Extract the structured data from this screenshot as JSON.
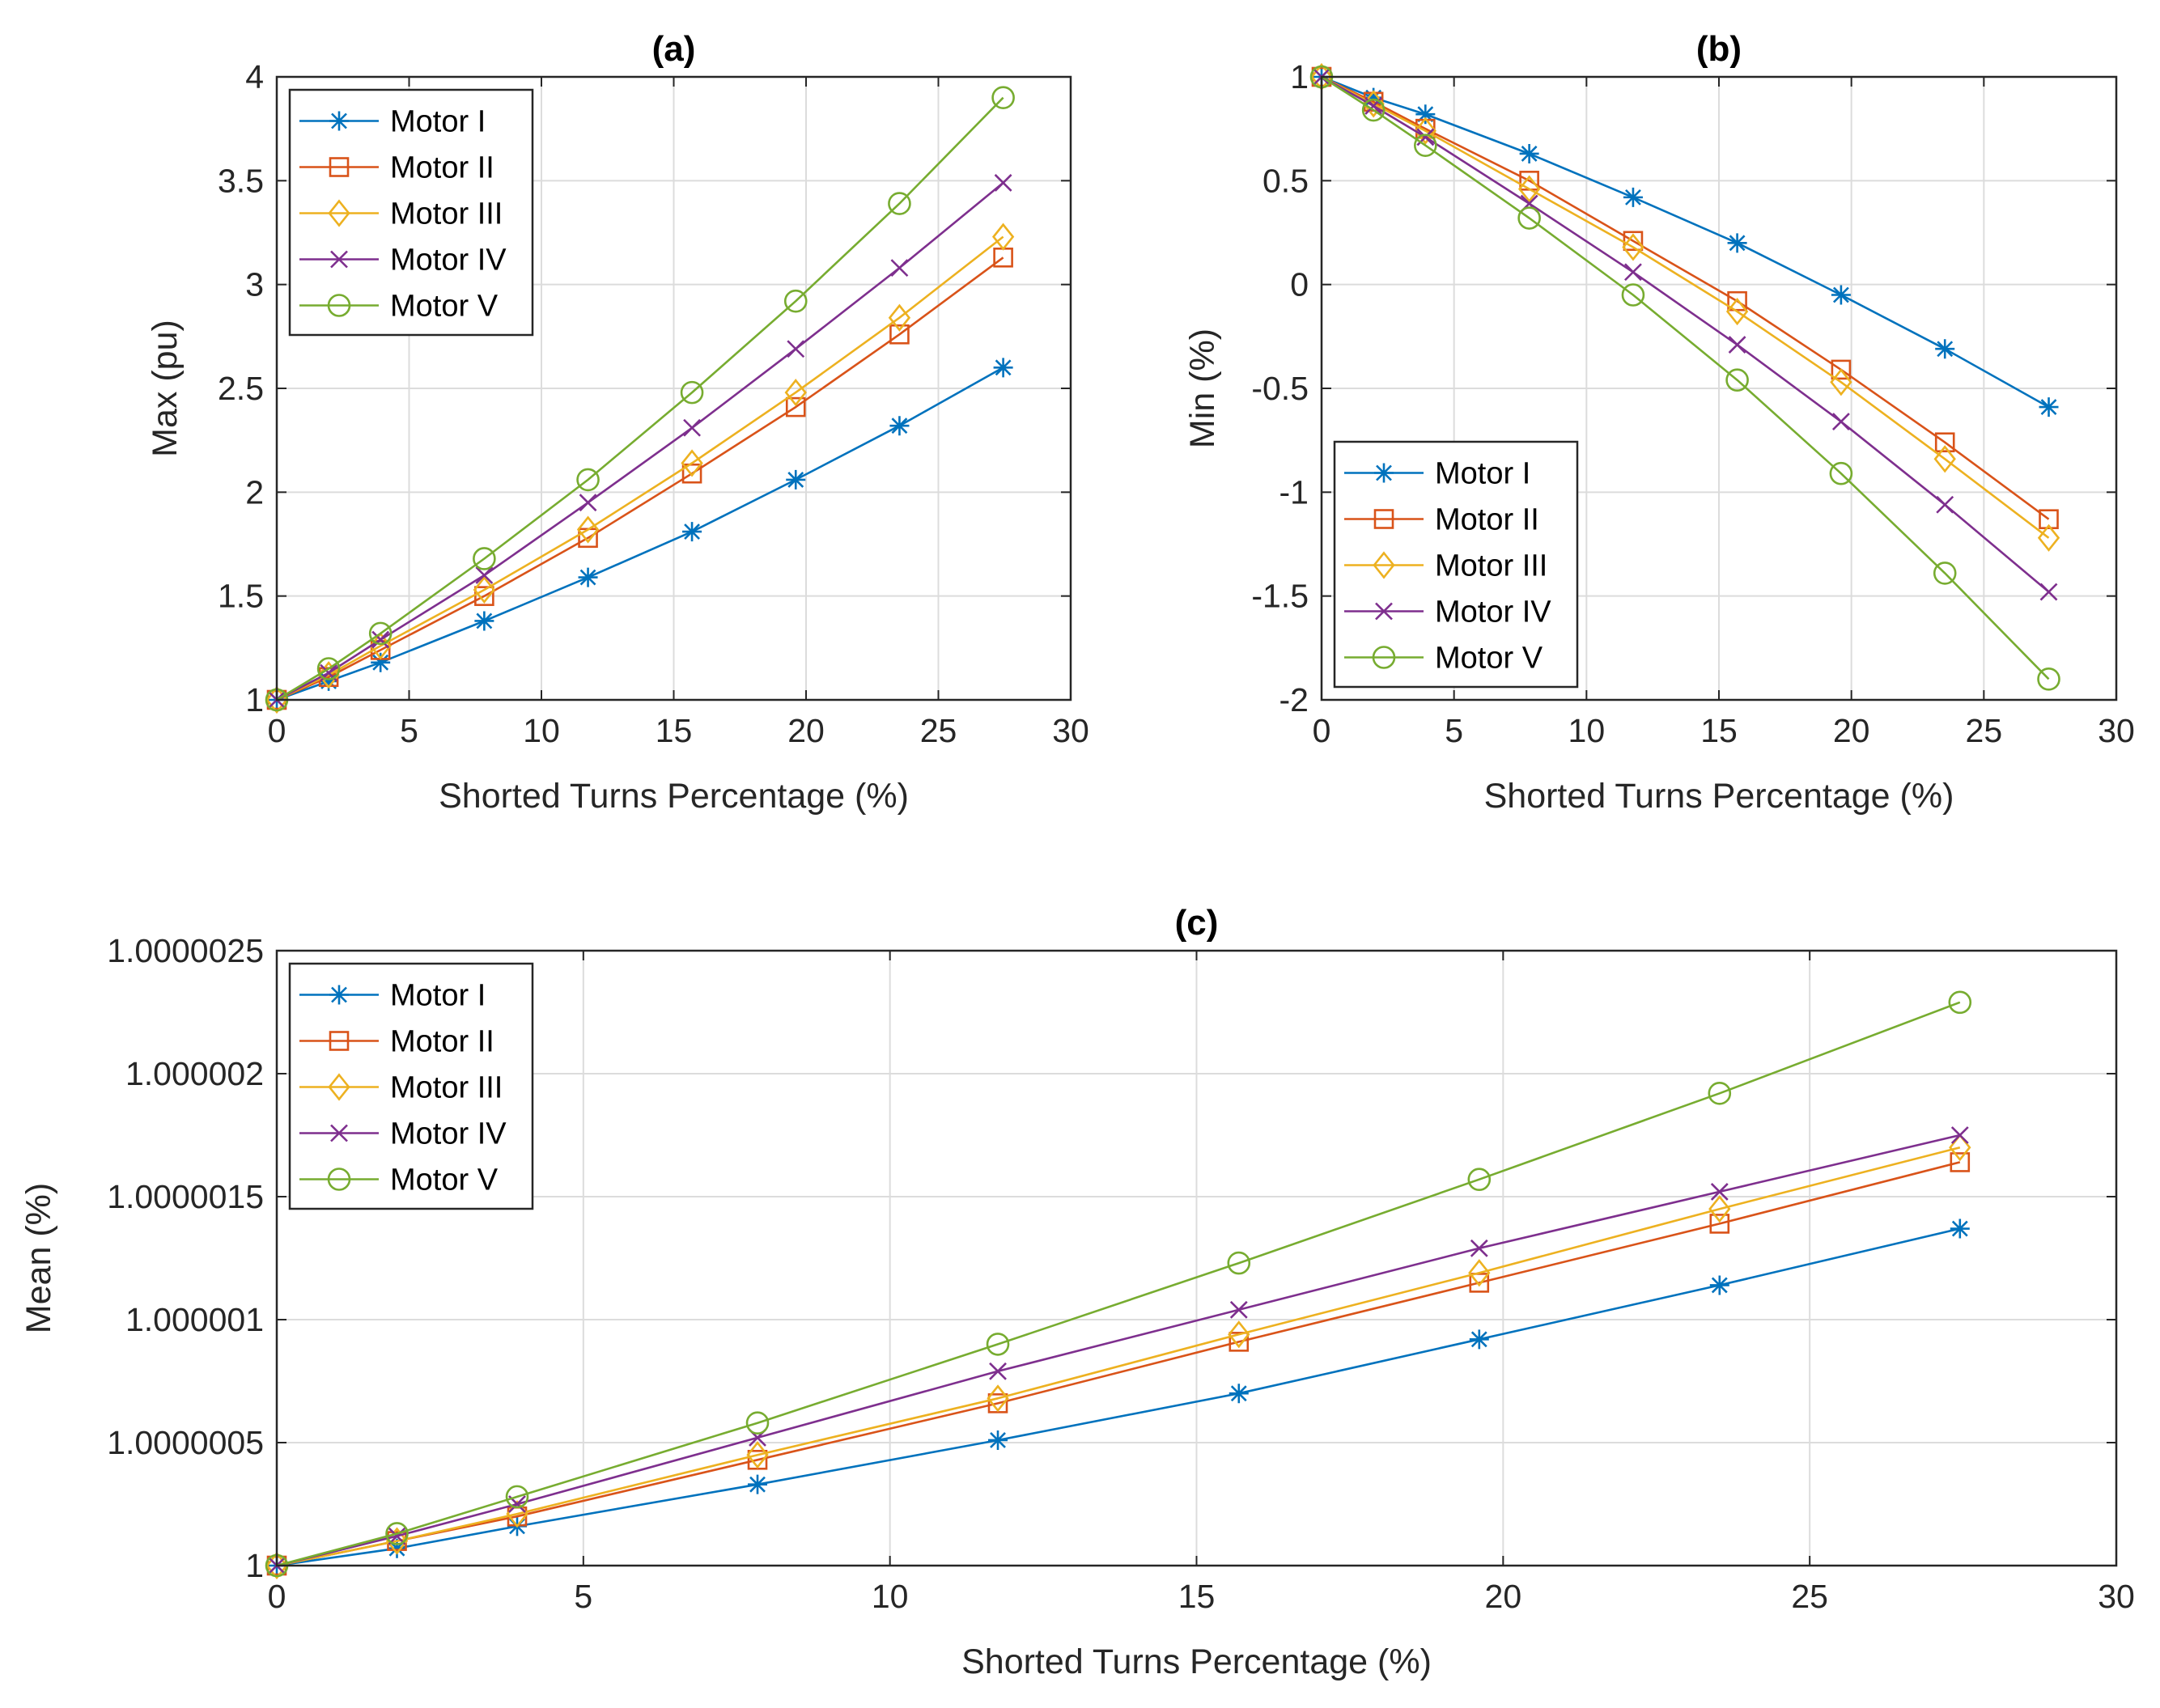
{
  "chart_data": [
    {
      "type": "line",
      "panel": "a",
      "title": "(a)",
      "xlabel": "Shorted Turns Percentage (%)",
      "ylabel": "Max (pu)",
      "xlim": [
        0,
        30
      ],
      "ylim": [
        1,
        4
      ],
      "xticks": [
        "0",
        "5",
        "10",
        "15",
        "20",
        "25",
        "30"
      ],
      "xtick_values": [
        0,
        5,
        10,
        15,
        20,
        25,
        30
      ],
      "yticks": [
        "1",
        "1.5",
        "2",
        "2.5",
        "3",
        "3.5",
        "4"
      ],
      "ytick_values": [
        1,
        1.5,
        2,
        2.5,
        3,
        3.5,
        4
      ],
      "grid": true,
      "legend_position": "top-left",
      "x": [
        0,
        1.96,
        3.92,
        7.84,
        11.76,
        15.69,
        19.61,
        23.53,
        27.45
      ],
      "series": [
        {
          "name": "Motor I",
          "color": "#0072BD",
          "marker": "asterisk",
          "values": [
            1,
            1.09,
            1.18,
            1.38,
            1.59,
            1.81,
            2.06,
            2.32,
            2.6
          ]
        },
        {
          "name": "Motor II",
          "color": "#D95319",
          "marker": "square",
          "values": [
            1,
            1.11,
            1.24,
            1.5,
            1.78,
            2.09,
            2.41,
            2.76,
            3.13
          ]
        },
        {
          "name": "Motor III",
          "color": "#EDB120",
          "marker": "diamond",
          "values": [
            1,
            1.12,
            1.26,
            1.53,
            1.82,
            2.14,
            2.48,
            2.84,
            3.23
          ]
        },
        {
          "name": "Motor IV",
          "color": "#7E2F8E",
          "marker": "x",
          "values": [
            1,
            1.13,
            1.29,
            1.6,
            1.95,
            2.31,
            2.69,
            3.08,
            3.49
          ]
        },
        {
          "name": "Motor V",
          "color": "#77AC30",
          "marker": "circle",
          "values": [
            1,
            1.15,
            1.32,
            1.68,
            2.06,
            2.48,
            2.92,
            3.39,
            3.9
          ]
        }
      ]
    },
    {
      "type": "line",
      "panel": "b",
      "title": "(b)",
      "xlabel": "Shorted Turns Percentage (%)",
      "ylabel": "Min (%)",
      "xlim": [
        0,
        30
      ],
      "ylim": [
        -2,
        1
      ],
      "xticks": [
        "0",
        "5",
        "10",
        "15",
        "20",
        "25",
        "30"
      ],
      "xtick_values": [
        0,
        5,
        10,
        15,
        20,
        25,
        30
      ],
      "yticks": [
        "-2",
        "-1.5",
        "-1",
        "-0.5",
        "0",
        "0.5",
        "1"
      ],
      "ytick_values": [
        -2,
        -1.5,
        -1,
        -0.5,
        0,
        0.5,
        1
      ],
      "grid": true,
      "legend_position": "bottom-left",
      "x": [
        0,
        1.96,
        3.92,
        7.84,
        11.76,
        15.69,
        19.61,
        23.53,
        27.45
      ],
      "series": [
        {
          "name": "Motor I",
          "color": "#0072BD",
          "marker": "asterisk",
          "values": [
            1,
            0.9,
            0.82,
            0.63,
            0.42,
            0.2,
            -0.05,
            -0.31,
            -0.59
          ]
        },
        {
          "name": "Motor II",
          "color": "#D95319",
          "marker": "square",
          "values": [
            1,
            0.88,
            0.75,
            0.5,
            0.21,
            -0.08,
            -0.41,
            -0.76,
            -1.13
          ]
        },
        {
          "name": "Motor III",
          "color": "#EDB120",
          "marker": "diamond",
          "values": [
            1,
            0.87,
            0.74,
            0.46,
            0.18,
            -0.13,
            -0.47,
            -0.84,
            -1.22
          ]
        },
        {
          "name": "Motor IV",
          "color": "#7E2F8E",
          "marker": "x",
          "values": [
            1,
            0.86,
            0.71,
            0.39,
            0.06,
            -0.29,
            -0.66,
            -1.06,
            -1.48
          ]
        },
        {
          "name": "Motor V",
          "color": "#77AC30",
          "marker": "circle",
          "values": [
            1,
            0.84,
            0.67,
            0.32,
            -0.05,
            -0.46,
            -0.91,
            -1.39,
            -1.9
          ]
        }
      ]
    },
    {
      "type": "line",
      "panel": "c",
      "title": "(c)",
      "xlabel": "Shorted Turns Percentage (%)",
      "ylabel": "Mean (%)",
      "xlim": [
        0,
        30
      ],
      "ylim": [
        1,
        1.0000025
      ],
      "xticks": [
        "0",
        "5",
        "10",
        "15",
        "20",
        "25",
        "30"
      ],
      "xtick_values": [
        0,
        5,
        10,
        15,
        20,
        25,
        30
      ],
      "yticks": [
        "1",
        "1.0000005",
        "1.000001",
        "1.0000015",
        "1.000002",
        "1.0000025"
      ],
      "ytick_values": [
        1,
        1.0000005,
        1.000001,
        1.0000015,
        1.000002,
        1.0000025
      ],
      "grid": true,
      "legend_position": "top-left",
      "x": [
        0,
        1.96,
        3.92,
        7.84,
        11.76,
        15.69,
        19.61,
        23.53,
        27.45
      ],
      "series": [
        {
          "name": "Motor I",
          "color": "#0072BD",
          "marker": "asterisk",
          "values": [
            1,
            1.00000007,
            1.00000016,
            1.00000033,
            1.00000051,
            1.0000007,
            1.00000092,
            1.00000114,
            1.00000137
          ]
        },
        {
          "name": "Motor II",
          "color": "#D95319",
          "marker": "square",
          "values": [
            1,
            1.0000001,
            1.0000002,
            1.00000043,
            1.00000066,
            1.00000091,
            1.00000115,
            1.00000139,
            1.00000164
          ]
        },
        {
          "name": "Motor III",
          "color": "#EDB120",
          "marker": "diamond",
          "values": [
            1,
            1.0000001,
            1.00000021,
            1.00000045,
            1.00000068,
            1.00000094,
            1.00000119,
            1.00000145,
            1.0000017
          ]
        },
        {
          "name": "Motor IV",
          "color": "#7E2F8E",
          "marker": "x",
          "values": [
            1,
            1.00000012,
            1.00000025,
            1.00000052,
            1.00000079,
            1.00000104,
            1.00000129,
            1.00000152,
            1.00000175
          ]
        },
        {
          "name": "Motor V",
          "color": "#77AC30",
          "marker": "circle",
          "values": [
            1,
            1.00000013,
            1.00000028,
            1.00000058,
            1.0000009,
            1.00000123,
            1.00000157,
            1.00000192,
            1.00000229
          ]
        }
      ]
    }
  ]
}
